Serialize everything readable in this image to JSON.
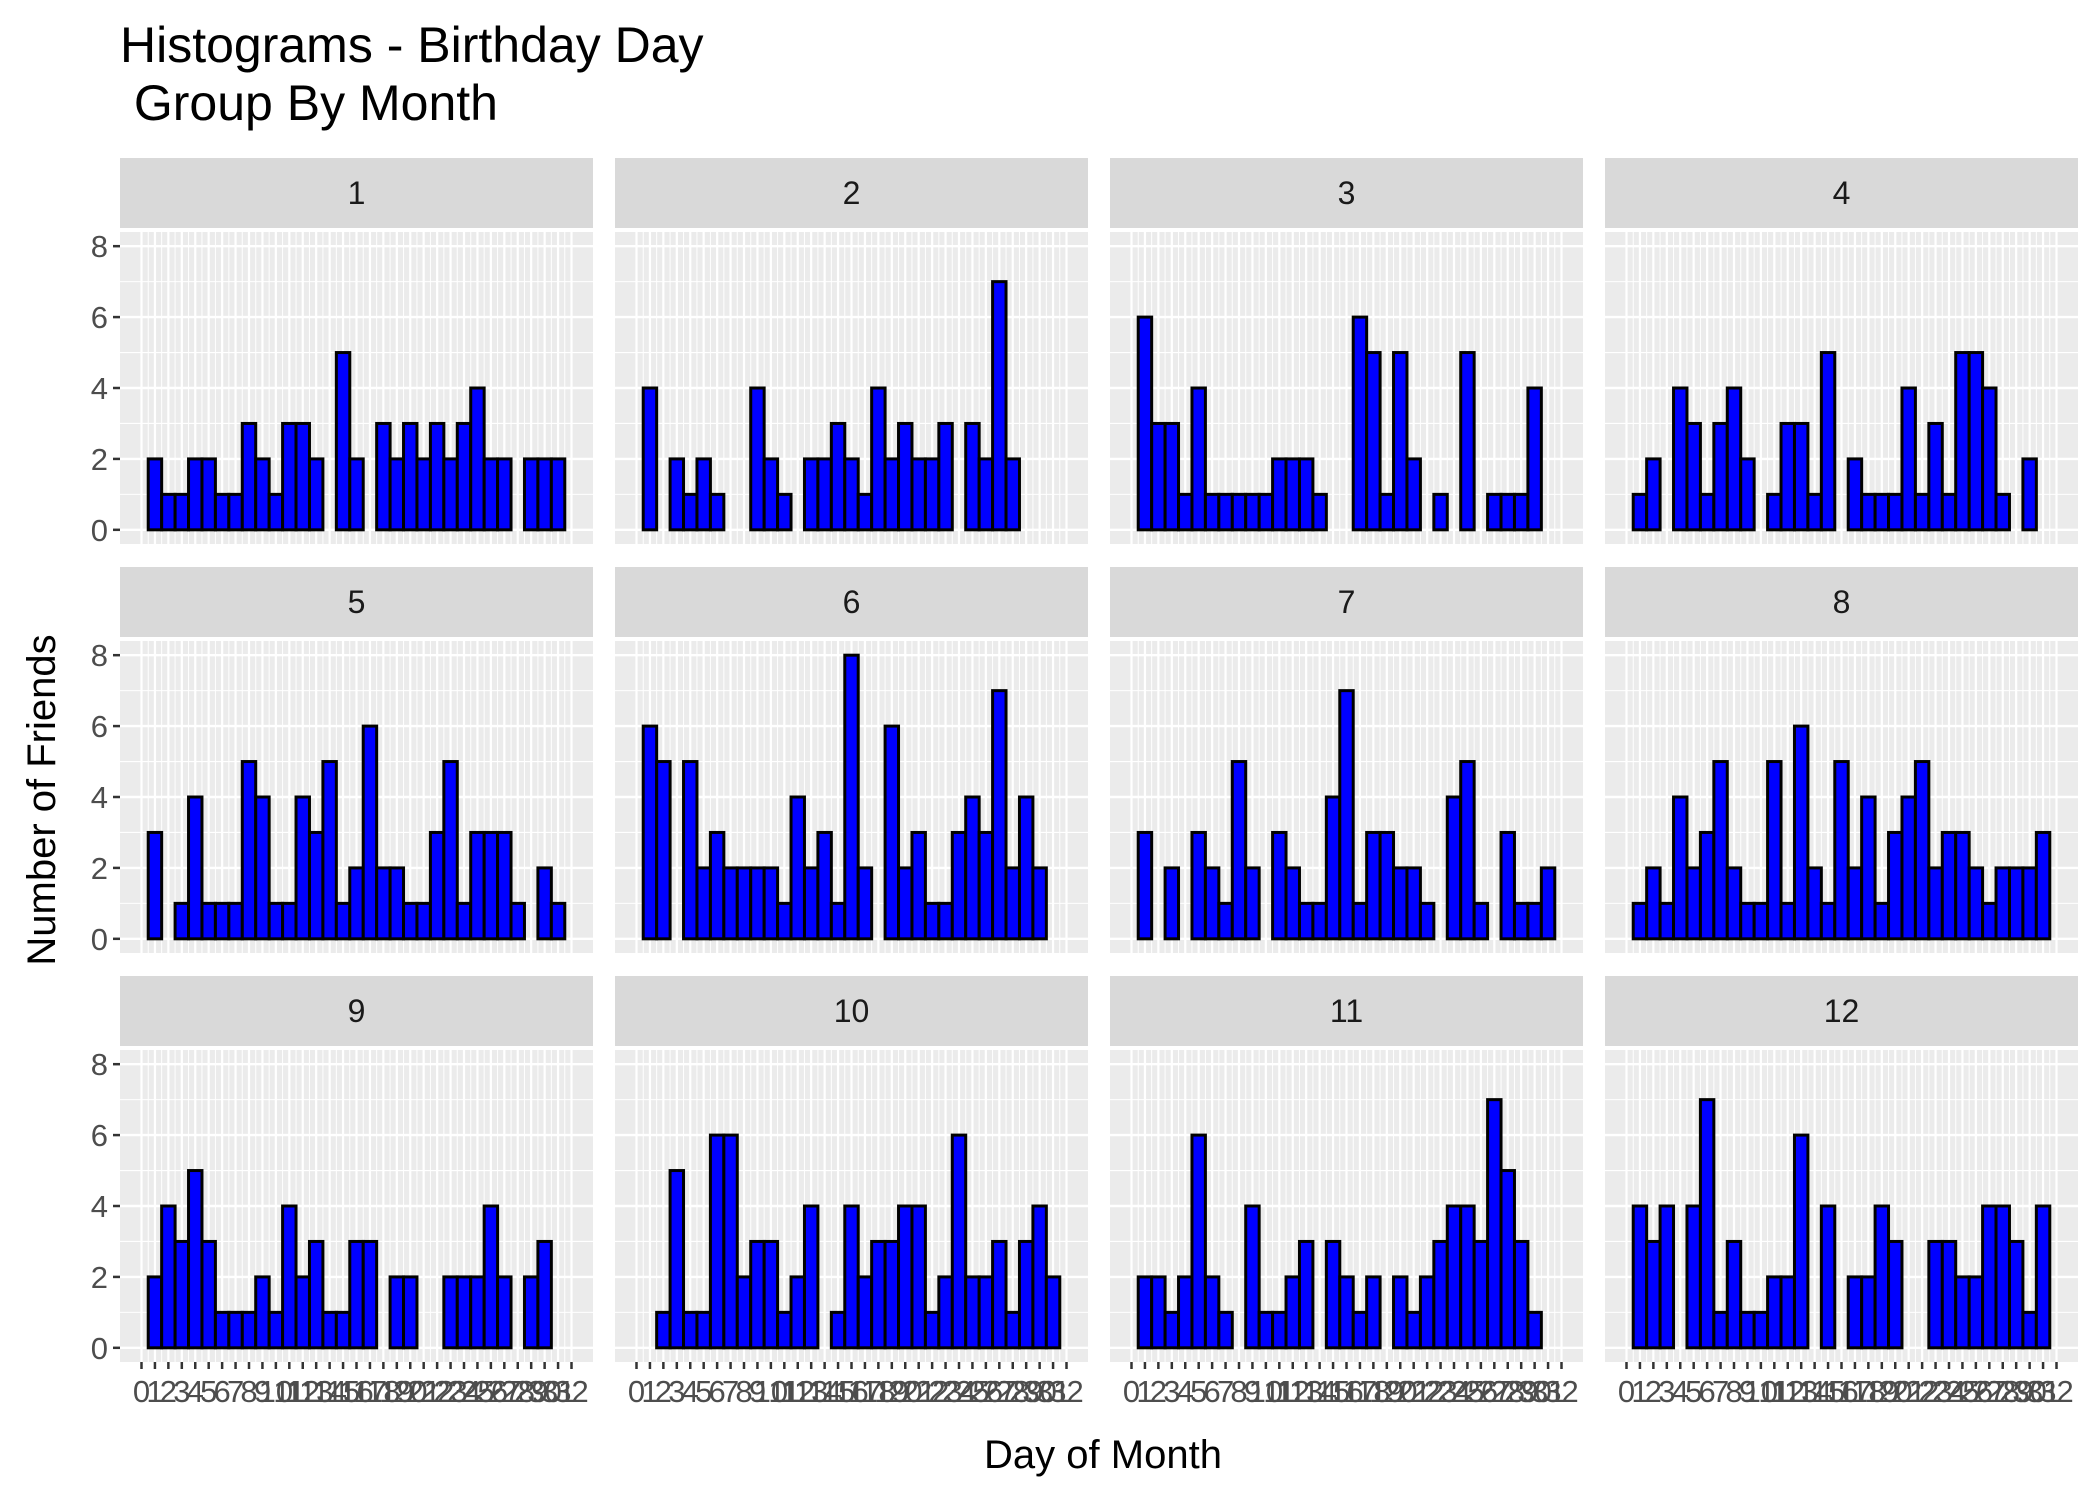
{
  "chart_data": {
    "type": "bar",
    "title": "Histograms - Birthday Day",
    "subtitle": " Group By Month",
    "xlabel": "Day of Month",
    "ylabel": "Number of Friends",
    "x": [
      1,
      2,
      3,
      4,
      5,
      6,
      7,
      8,
      9,
      10,
      11,
      12,
      13,
      14,
      15,
      16,
      17,
      18,
      19,
      20,
      21,
      22,
      23,
      24,
      25,
      26,
      27,
      28,
      29,
      30,
      31
    ],
    "x_tick_labels": [
      "0",
      "1",
      "2",
      "3",
      "4",
      "5",
      "6",
      "7",
      "8",
      "9",
      "10",
      "11",
      "12",
      "13",
      "14",
      "15",
      "16",
      "17",
      "18",
      "19",
      "20",
      "21",
      "22",
      "23",
      "24",
      "25",
      "26",
      "27",
      "28",
      "29",
      "30",
      "31",
      "32"
    ],
    "y_ticks": [
      "0",
      "2",
      "4",
      "6",
      "8"
    ],
    "xlim": [
      0,
      32
    ],
    "ylim": [
      0,
      8
    ],
    "bar_fill": "#0000ff",
    "bar_outline": "#000000",
    "panel_background": "#ebebeb",
    "strip_background": "#d9d9d9",
    "grid": true,
    "facets": [
      {
        "label": "1",
        "values": [
          2,
          1,
          1,
          2,
          2,
          1,
          1,
          3,
          2,
          1,
          3,
          3,
          2,
          0,
          5,
          2,
          0,
          3,
          2,
          3,
          2,
          3,
          2,
          3,
          4,
          2,
          2,
          0,
          2,
          2,
          2
        ]
      },
      {
        "label": "2",
        "values": [
          4,
          0,
          2,
          1,
          2,
          1,
          0,
          0,
          4,
          2,
          1,
          0,
          2,
          2,
          3,
          2,
          1,
          4,
          2,
          3,
          2,
          2,
          3,
          0,
          3,
          2,
          7,
          2,
          0,
          0,
          0
        ]
      },
      {
        "label": "3",
        "values": [
          6,
          3,
          3,
          1,
          4,
          1,
          1,
          1,
          1,
          1,
          2,
          2,
          2,
          1,
          0,
          0,
          6,
          5,
          1,
          5,
          2,
          0,
          1,
          0,
          5,
          0,
          1,
          1,
          1,
          4,
          0
        ]
      },
      {
        "label": "4",
        "values": [
          1,
          2,
          0,
          4,
          3,
          1,
          3,
          4,
          2,
          0,
          1,
          3,
          3,
          1,
          5,
          0,
          2,
          1,
          1,
          1,
          4,
          1,
          3,
          1,
          5,
          5,
          4,
          1,
          0,
          2,
          0
        ]
      },
      {
        "label": "5",
        "values": [
          3,
          0,
          1,
          4,
          1,
          1,
          1,
          5,
          4,
          1,
          1,
          4,
          3,
          5,
          1,
          2,
          6,
          2,
          2,
          1,
          1,
          3,
          5,
          1,
          3,
          3,
          3,
          1,
          0,
          2,
          1
        ]
      },
      {
        "label": "6",
        "values": [
          6,
          5,
          0,
          5,
          2,
          3,
          2,
          2,
          2,
          2,
          1,
          4,
          2,
          3,
          1,
          8,
          2,
          0,
          6,
          2,
          3,
          1,
          1,
          3,
          4,
          3,
          7,
          2,
          4,
          2,
          0
        ]
      },
      {
        "label": "7",
        "values": [
          3,
          0,
          2,
          0,
          3,
          2,
          1,
          5,
          2,
          0,
          3,
          2,
          1,
          1,
          4,
          7,
          1,
          3,
          3,
          2,
          2,
          1,
          0,
          4,
          5,
          1,
          0,
          3,
          1,
          1,
          2
        ]
      },
      {
        "label": "8",
        "values": [
          1,
          2,
          1,
          4,
          2,
          3,
          5,
          2,
          1,
          1,
          5,
          1,
          6,
          2,
          1,
          5,
          2,
          4,
          1,
          3,
          4,
          5,
          2,
          3,
          3,
          2,
          1,
          2,
          2,
          2,
          3
        ]
      },
      {
        "label": "9",
        "values": [
          2,
          4,
          3,
          5,
          3,
          1,
          1,
          1,
          2,
          1,
          4,
          2,
          3,
          1,
          1,
          3,
          3,
          0,
          2,
          2,
          0,
          0,
          2,
          2,
          2,
          4,
          2,
          0,
          2,
          3,
          0
        ]
      },
      {
        "label": "10",
        "values": [
          0,
          1,
          5,
          1,
          1,
          6,
          6,
          2,
          3,
          3,
          1,
          2,
          4,
          0,
          1,
          4,
          2,
          3,
          3,
          4,
          4,
          1,
          2,
          6,
          2,
          2,
          3,
          1,
          3,
          4,
          2
        ]
      },
      {
        "label": "11",
        "values": [
          2,
          2,
          1,
          2,
          6,
          2,
          1,
          0,
          4,
          1,
          1,
          2,
          3,
          0,
          3,
          2,
          1,
          2,
          0,
          2,
          1,
          2,
          3,
          4,
          4,
          3,
          7,
          5,
          3,
          1,
          0
        ]
      },
      {
        "label": "12",
        "values": [
          4,
          3,
          4,
          0,
          4,
          7,
          1,
          3,
          1,
          1,
          2,
          2,
          6,
          0,
          4,
          0,
          2,
          2,
          4,
          3,
          0,
          0,
          3,
          3,
          2,
          2,
          4,
          4,
          3,
          1,
          4
        ]
      }
    ]
  }
}
